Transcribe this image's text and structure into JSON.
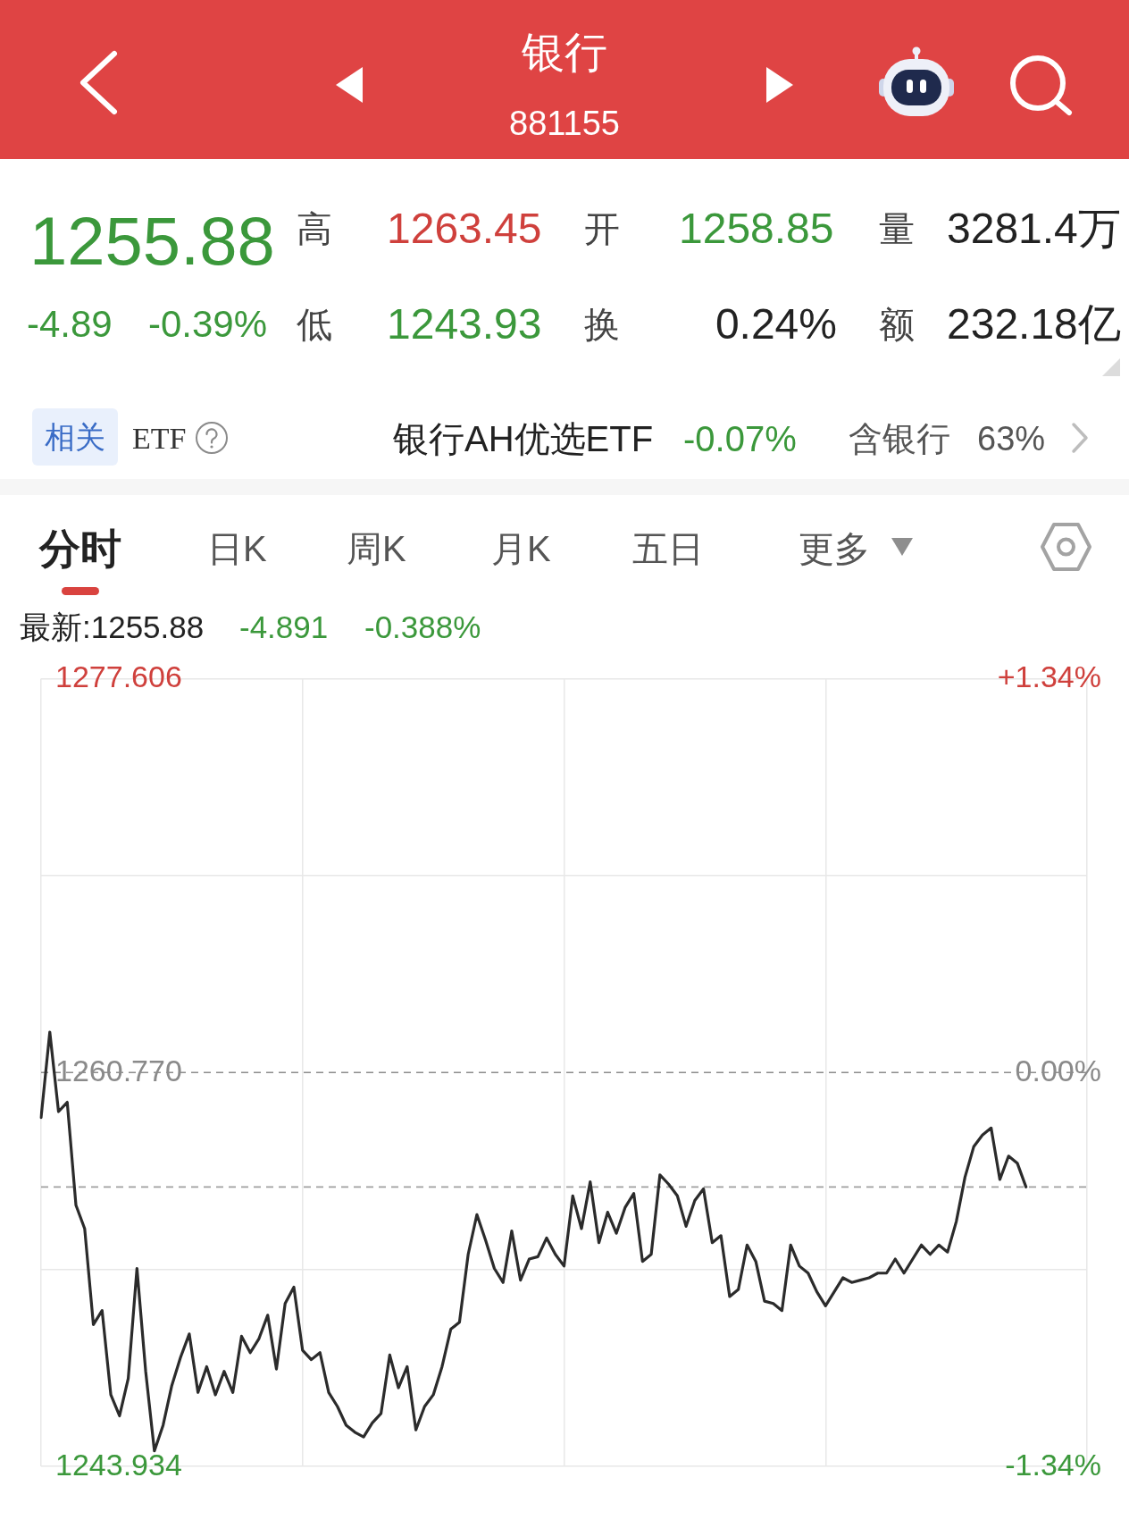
{
  "chart_data": {
    "type": "line",
    "title": "银行",
    "subtitle": "881155",
    "annotations": [
      "1255.88",
      "高",
      "1263.45",
      "开",
      "1258.85",
      "量",
      "3281.4万",
      "-4.89",
      "-0.39%",
      "低",
      "1243.93",
      "换",
      "0.24%",
      "额",
      "232.18亿",
      "相关",
      "ETF",
      "银行AH优选ETF",
      "-0.07%",
      "含银行",
      "63%",
      "分时",
      "日K",
      "周K",
      "月K",
      "五日",
      "更多",
      "最新:1255.88",
      "-4.891",
      "-0.388%"
    ],
    "categories": [
      null,
      null,
      null,
      null,
      null,
      null,
      null,
      null,
      null,
      null,
      null,
      null,
      null,
      null,
      null,
      null,
      null,
      null,
      null,
      null,
      null,
      null,
      null,
      null,
      null,
      null,
      null,
      null,
      null,
      null,
      null,
      null,
      null,
      null,
      null,
      null,
      null,
      null,
      null,
      null,
      null,
      null,
      null,
      null,
      null,
      null,
      null,
      null,
      null,
      null,
      null,
      null,
      null,
      null,
      null,
      null,
      null,
      null,
      null,
      null,
      null,
      null,
      null,
      null,
      null,
      null,
      null,
      null,
      null,
      null,
      null,
      null,
      null,
      null,
      null,
      null,
      null,
      null,
      null,
      null,
      null,
      null,
      null,
      null,
      null,
      null,
      null,
      null,
      null,
      null,
      null,
      null,
      null,
      null,
      null,
      null,
      null,
      null,
      null,
      null,
      null,
      null,
      null,
      null,
      null,
      null,
      null,
      null,
      null,
      null,
      null,
      null,
      null,
      null,
      null,
      null,
      null,
      null,
      null,
      null,
      null
    ],
    "values": [
      1258.85,
      1262.5,
      1259.1,
      1259.5,
      1255.1,
      1254.1,
      1250.0,
      1250.6,
      1247.0,
      1246.1,
      1247.7,
      1252.4,
      1248.0,
      1244.6,
      1245.7,
      1247.4,
      1248.6,
      1249.6,
      1247.1,
      1248.2,
      1247.0,
      1248.0,
      1247.1,
      1249.5,
      1248.8,
      1249.4,
      1250.4,
      1248.1,
      1250.9,
      1251.6,
      1248.9,
      1248.5,
      1248.8,
      1247.1,
      1246.5,
      1245.7,
      1245.4,
      1245.2,
      1245.8,
      1246.2,
      1248.7,
      1247.3,
      1248.2,
      1245.5,
      1246.5,
      1247.0,
      1248.2,
      1249.8,
      1250.1,
      1253.0,
      1254.7,
      1253.6,
      1252.4,
      1251.8,
      1254.0,
      1251.9,
      1252.8,
      1252.9,
      1253.7,
      1253.0,
      1252.5,
      1255.5,
      1254.1,
      1256.1,
      1253.5,
      1254.8,
      1253.9,
      1255.0,
      1255.6,
      1252.7,
      1253.0,
      1256.4,
      1256.0,
      1255.5,
      1254.2,
      1255.3,
      1255.8,
      1253.5,
      1253.8,
      1251.2,
      1251.5,
      1253.4,
      1252.7,
      1251.0,
      1250.9,
      1250.6,
      1253.4,
      1252.5,
      1252.2,
      1251.4,
      1250.8,
      1251.4,
      1252.0,
      1251.8,
      1251.9,
      1252.0,
      1252.2,
      1252.2,
      1252.8,
      1252.2,
      1252.8,
      1253.4,
      1253.0,
      1253.4,
      1253.1,
      1254.4,
      1256.3,
      1257.6,
      1258.1,
      1258.4,
      1256.2,
      1257.2,
      1256.9,
      1255.88,
      null,
      null,
      null,
      null,
      null,
      null,
      null
    ],
    "color": "#2b2b2b",
    "ylim": [
      1243.934,
      1277.606
    ],
    "yticks": [
      1243.934,
      {
        "value": 1252.352,
        "label": null
      },
      {
        "value": 1260.77,
        "label": "1260.770"
      },
      {
        "value": 1269.188,
        "label": null
      },
      1277.606
    ],
    "y2lim": [
      -1.34,
      1.34
    ],
    "y2ticks": [
      {
        "value": -1.34,
        "label": "-1.34%"
      },
      {
        "value": 0,
        "label": "0.00%"
      },
      {
        "value": 1.34,
        "label": "+1.34%"
      }
    ],
    "ref_lines": [
      {
        "axis": "y",
        "value": 1260.77,
        "color": "#8c8c8c",
        "line_style": "dashed"
      },
      {
        "axis": "y",
        "value": 1255.88,
        "color": "#a0a0a0",
        "line_style": "dashed"
      }
    ],
    "grid": true,
    "marker": "none",
    "line_style": "solid"
  }
}
